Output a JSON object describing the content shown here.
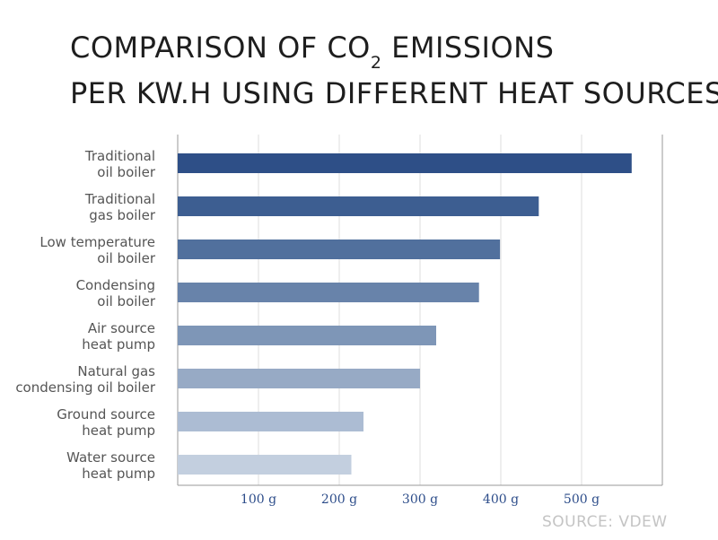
{
  "title": {
    "line1_prefix": "COMPARISON OF CO",
    "line1_sub": "2",
    "line1_suffix": " EMISSIONS",
    "line2": "PER KW.H USING DIFFERENT HEAT SOURCES"
  },
  "source": "SOURCE: VDEW",
  "chart_data": {
    "type": "bar",
    "orientation": "horizontal",
    "title": "COMPARISON OF CO2 EMISSIONS PER KW.H USING DIFFERENT HEAT SOURCES",
    "categories": [
      [
        "Traditional",
        "oil boiler"
      ],
      [
        "Traditional",
        "gas boiler"
      ],
      [
        "Low temperature",
        "oil boiler"
      ],
      [
        "Condensing",
        "oil boiler"
      ],
      [
        "Air source",
        "heat pump"
      ],
      [
        "Natural gas",
        "condensing oil boiler"
      ],
      [
        "Ground source",
        "heat pump"
      ],
      [
        "Water source",
        "heat pump"
      ]
    ],
    "values": [
      562,
      447,
      399,
      373,
      320,
      300,
      230,
      215
    ],
    "colors": [
      "#2e4f87",
      "#3d5e91",
      "#51709d",
      "#6883aa",
      "#7e96b7",
      "#97aac5",
      "#acbcd3",
      "#c3cfdf"
    ],
    "xlim": [
      0,
      600
    ],
    "xticks": [
      100,
      200,
      300,
      400,
      500
    ],
    "xtick_labels": [
      "100 g",
      "200 g",
      "300 g",
      "400 g",
      "500 g"
    ],
    "grid": true,
    "xlabel": "",
    "ylabel": ""
  }
}
